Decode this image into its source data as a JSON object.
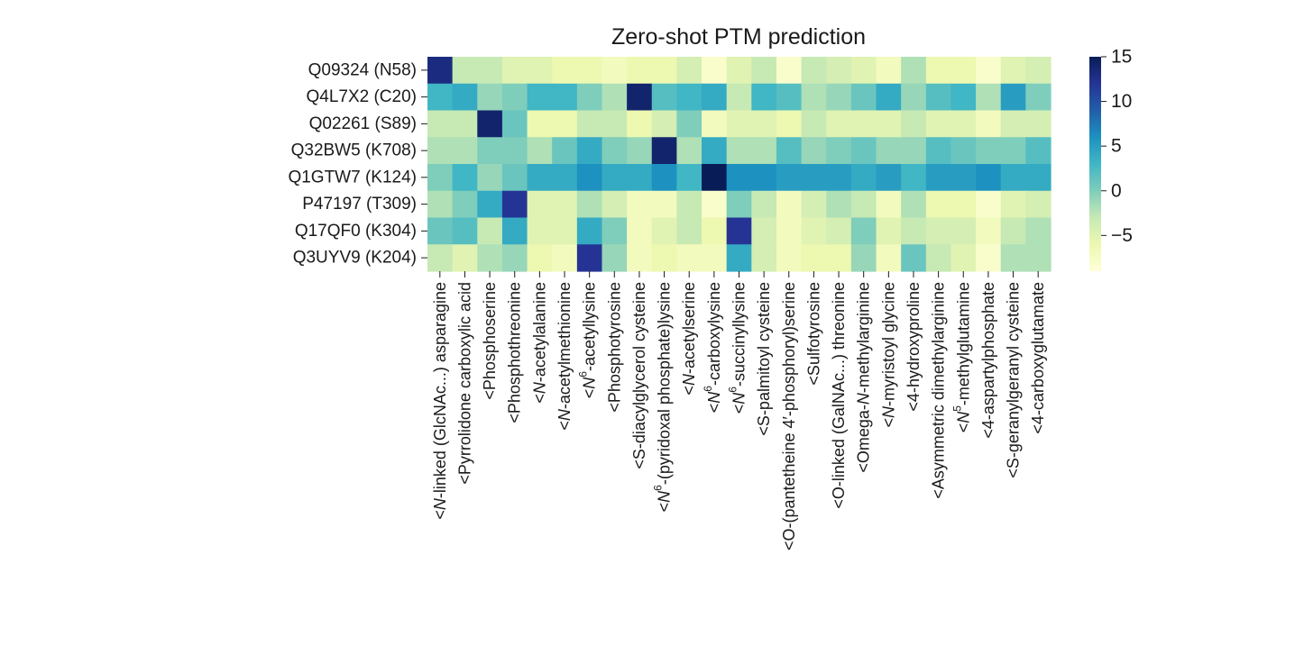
{
  "chart_data": {
    "type": "heatmap",
    "title": "Zero-shot PTM prediction",
    "xlabel": "",
    "ylabel": "",
    "rows": [
      "Q09324 (N58)",
      "Q4L7X2 (C20)",
      "Q02261 (S89)",
      "Q32BW5 (K708)",
      "Q1GTW7 (K124)",
      "P47197 (T309)",
      "Q17QF0 (K304)",
      "Q3UYV9 (K204)"
    ],
    "columns": [
      {
        "parts": [
          [
            "<",
            ""
          ],
          [
            "N",
            "i"
          ],
          [
            "-linked (GlcNAc...) asparagine",
            ""
          ]
        ]
      },
      {
        "parts": [
          [
            "<Pyrrolidone carboxylic acid",
            ""
          ]
        ]
      },
      {
        "parts": [
          [
            "<Phosphoserine",
            ""
          ]
        ]
      },
      {
        "parts": [
          [
            "<Phosphothreonine",
            ""
          ]
        ]
      },
      {
        "parts": [
          [
            "<",
            ""
          ],
          [
            "N",
            "i"
          ],
          [
            "-acetylalanine",
            ""
          ]
        ]
      },
      {
        "parts": [
          [
            "<",
            ""
          ],
          [
            "N",
            "i"
          ],
          [
            "-acetylmethionine",
            ""
          ]
        ]
      },
      {
        "parts": [
          [
            "<",
            ""
          ],
          [
            "N",
            "i"
          ],
          [
            "6",
            "sup"
          ],
          [
            "-acetyllysine",
            ""
          ]
        ]
      },
      {
        "parts": [
          [
            "<Phosphotyrosine",
            ""
          ]
        ]
      },
      {
        "parts": [
          [
            "<S-diacylglycerol cysteine",
            ""
          ]
        ]
      },
      {
        "parts": [
          [
            "<",
            ""
          ],
          [
            "N",
            "i"
          ],
          [
            "6",
            "sup"
          ],
          [
            "-(pyridoxal phosphate)lysine",
            ""
          ]
        ]
      },
      {
        "parts": [
          [
            "<",
            ""
          ],
          [
            "N",
            "i"
          ],
          [
            "-acetylserine",
            ""
          ]
        ]
      },
      {
        "parts": [
          [
            "<",
            ""
          ],
          [
            "N",
            "i"
          ],
          [
            "6",
            "sup"
          ],
          [
            "-carboxylysine",
            ""
          ]
        ]
      },
      {
        "parts": [
          [
            "<",
            ""
          ],
          [
            "N",
            "i"
          ],
          [
            "6",
            "sup"
          ],
          [
            "-succinyllysine",
            ""
          ]
        ]
      },
      {
        "parts": [
          [
            "<S-palmitoyl cysteine",
            ""
          ]
        ]
      },
      {
        "parts": [
          [
            "<O-(pantetheine 4′-phosphoryl)serine",
            ""
          ]
        ]
      },
      {
        "parts": [
          [
            "<Sulfotyrosine",
            ""
          ]
        ]
      },
      {
        "parts": [
          [
            "<O-linked (GalNAc...) threonine",
            ""
          ]
        ]
      },
      {
        "parts": [
          [
            "<Omega-",
            ""
          ],
          [
            "N",
            "i"
          ],
          [
            "-methylarginine",
            ""
          ]
        ]
      },
      {
        "parts": [
          [
            "<",
            ""
          ],
          [
            "N",
            "i"
          ],
          [
            "-myristoyl glycine",
            ""
          ]
        ]
      },
      {
        "parts": [
          [
            "<4-hydroxyproline",
            ""
          ]
        ]
      },
      {
        "parts": [
          [
            "<Asymmetric dimethylarginine",
            ""
          ]
        ]
      },
      {
        "parts": [
          [
            "<",
            ""
          ],
          [
            "N",
            "i"
          ],
          [
            "5",
            "sup"
          ],
          [
            "-methylglutamine",
            ""
          ]
        ]
      },
      {
        "parts": [
          [
            "<4-aspartylphosphate",
            ""
          ]
        ]
      },
      {
        "parts": [
          [
            "<S-geranylgeranyl cysteine",
            ""
          ]
        ]
      },
      {
        "parts": [
          [
            "<4-carboxyglutamate",
            ""
          ]
        ]
      }
    ],
    "values": [
      [
        13,
        -3,
        -3,
        -5,
        -5,
        -6,
        -6,
        -7,
        -6,
        -6,
        -4,
        -8,
        -5,
        -3,
        -8,
        -3,
        -4,
        -5,
        -7,
        -2,
        -6,
        -6,
        -8,
        -5,
        -4
      ],
      [
        3,
        4,
        -1,
        0,
        3,
        3,
        0,
        -2,
        14,
        2,
        3,
        4,
        -3,
        3,
        2,
        -2,
        -1,
        1,
        4,
        -1,
        2,
        3,
        -2,
        5,
        0
      ],
      [
        -3,
        -3,
        14,
        1,
        -6,
        -6,
        -3,
        -3,
        -6,
        -4,
        0,
        -7,
        -5,
        -5,
        -6,
        -3,
        -5,
        -5,
        -5,
        -3,
        -5,
        -5,
        -7,
        -4,
        -4
      ],
      [
        -2,
        -2,
        0,
        0,
        -2,
        1,
        4,
        0,
        -1,
        14,
        -2,
        4,
        -2,
        -2,
        2,
        -1,
        0,
        1,
        -1,
        -1,
        2,
        1,
        0,
        0,
        2
      ],
      [
        0,
        3,
        -1,
        1,
        4,
        4,
        6,
        4,
        4,
        6,
        3,
        15,
        6,
        6,
        5,
        5,
        5,
        4,
        5,
        3,
        5,
        5,
        6,
        4,
        4
      ],
      [
        -2,
        0,
        4,
        12,
        -5,
        -5,
        -2,
        -4,
        -7,
        -7,
        -3,
        -8,
        0,
        -3,
        -7,
        -4,
        -2,
        -3,
        -7,
        -2,
        -6,
        -6,
        -8,
        -5,
        -4
      ],
      [
        1,
        2,
        -3,
        4,
        -5,
        -5,
        4,
        0,
        -7,
        -5,
        -3,
        -6,
        12,
        -4,
        -7,
        -5,
        -4,
        0,
        -5,
        -3,
        -4,
        -4,
        -7,
        -3,
        -2
      ],
      [
        -3,
        -5,
        -2,
        -1,
        -6,
        -7,
        12,
        -1,
        -7,
        -6,
        -7,
        -7,
        4,
        -4,
        -7,
        -6,
        -6,
        -1,
        -7,
        1,
        -3,
        -5,
        -8,
        -2,
        -2
      ]
    ],
    "color_scale": {
      "min": -9,
      "max": 15,
      "ticks": [
        15,
        10,
        5,
        0,
        -5
      ],
      "tick_labels": [
        "15",
        "10",
        "5",
        "0",
        "−5"
      ],
      "colormap": "YlGnBu",
      "stops": [
        "#ffffd9",
        "#edf8b1",
        "#c7e9b4",
        "#7fcdbb",
        "#41b6c4",
        "#1d91c0",
        "#225ea8",
        "#253494",
        "#081d58"
      ]
    }
  }
}
